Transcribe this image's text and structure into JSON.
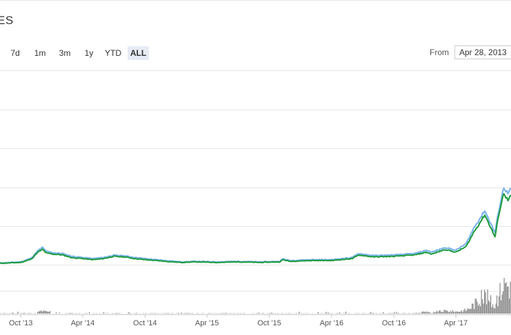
{
  "header": {
    "title": "ES"
  },
  "range_selector": {
    "buttons": [
      {
        "label": "7d",
        "active": false
      },
      {
        "label": "1m",
        "active": false
      },
      {
        "label": "3m",
        "active": false
      },
      {
        "label": "1y",
        "active": false
      },
      {
        "label": "YTD",
        "active": false
      },
      {
        "label": "ALL",
        "active": true
      }
    ],
    "from_label": "From",
    "from_value": "Apr 28, 2013"
  },
  "colors": {
    "price_line": "#1a9a3a",
    "usd_line": "#7cb5ec",
    "volume": "#888888",
    "grid": "#e6e6e6",
    "active_button": "#e6ebf5"
  },
  "chart_data": {
    "type": "line",
    "title": "",
    "xlabel": "",
    "ylabel": "",
    "x_tick_labels": [
      "Oct '13",
      "Apr '14",
      "Oct '14",
      "Apr '15",
      "Oct '15",
      "Apr '16",
      "Oct '16",
      "Apr '17"
    ],
    "x_range": [
      "2013-08-01",
      "2017-09-10"
    ],
    "ylim": [
      0,
      7
    ],
    "grid": true,
    "series": [
      {
        "name": "",
        "x": [
          "2013-08-01",
          "2013-10-01",
          "2013-11-01",
          "2013-11-20",
          "2013-12-04",
          "2013-12-15",
          "2014-01-05",
          "2014-02-01",
          "2014-03-01",
          "2014-04-01",
          "2014-05-01",
          "2014-06-01",
          "2014-07-01",
          "2014-08-01",
          "2014-09-01",
          "2014-10-01",
          "2014-11-01",
          "2014-12-01",
          "2015-01-15",
          "2015-03-01",
          "2015-05-01",
          "2015-07-01",
          "2015-09-01",
          "2015-11-01",
          "2015-11-10",
          "2015-12-01",
          "2016-02-01",
          "2016-04-01",
          "2016-06-01",
          "2016-06-20",
          "2016-08-01",
          "2016-10-01",
          "2016-12-01",
          "2017-01-05",
          "2017-01-20",
          "2017-03-01",
          "2017-04-01",
          "2017-05-01",
          "2017-05-25",
          "2017-06-10",
          "2017-06-25",
          "2017-07-10",
          "2017-07-25",
          "2017-08-05",
          "2017-08-20",
          "2017-09-01",
          "2017-09-10"
        ],
        "y": [
          0.05,
          0.08,
          0.2,
          0.45,
          0.55,
          0.42,
          0.38,
          0.35,
          0.25,
          0.22,
          0.18,
          0.22,
          0.3,
          0.28,
          0.22,
          0.18,
          0.15,
          0.12,
          0.08,
          0.1,
          0.08,
          0.1,
          0.08,
          0.1,
          0.18,
          0.12,
          0.15,
          0.15,
          0.22,
          0.35,
          0.28,
          0.3,
          0.35,
          0.45,
          0.38,
          0.55,
          0.45,
          0.65,
          1.2,
          1.5,
          1.8,
          1.4,
          1.0,
          1.8,
          2.6,
          2.3,
          2.5
        ]
      },
      {
        "name": "",
        "x": [
          "2013-08-01",
          "2013-10-01",
          "2013-11-01",
          "2013-11-20",
          "2013-12-04",
          "2013-12-15",
          "2014-01-05",
          "2014-02-01",
          "2014-03-01",
          "2014-04-01",
          "2014-05-01",
          "2014-06-01",
          "2014-07-01",
          "2014-08-01",
          "2014-09-01",
          "2014-10-01",
          "2014-11-01",
          "2014-12-01",
          "2015-01-15",
          "2015-03-01",
          "2015-05-01",
          "2015-07-01",
          "2015-09-01",
          "2015-11-01",
          "2015-11-10",
          "2015-12-01",
          "2016-02-01",
          "2016-04-01",
          "2016-06-01",
          "2016-06-20",
          "2016-08-01",
          "2016-10-01",
          "2016-12-01",
          "2017-01-05",
          "2017-01-20",
          "2017-03-01",
          "2017-04-01",
          "2017-05-01",
          "2017-05-25",
          "2017-06-10",
          "2017-06-25",
          "2017-07-10",
          "2017-07-25",
          "2017-08-05",
          "2017-08-20",
          "2017-09-01",
          "2017-09-10"
        ],
        "y": [
          0.06,
          0.1,
          0.24,
          0.5,
          0.62,
          0.48,
          0.43,
          0.4,
          0.3,
          0.26,
          0.22,
          0.26,
          0.34,
          0.32,
          0.26,
          0.22,
          0.18,
          0.15,
          0.1,
          0.12,
          0.1,
          0.12,
          0.1,
          0.12,
          0.21,
          0.15,
          0.18,
          0.18,
          0.26,
          0.4,
          0.33,
          0.35,
          0.4,
          0.52,
          0.45,
          0.62,
          0.52,
          0.75,
          1.35,
          1.65,
          1.95,
          1.55,
          1.15,
          1.95,
          2.8,
          2.55,
          2.75
        ]
      }
    ]
  }
}
